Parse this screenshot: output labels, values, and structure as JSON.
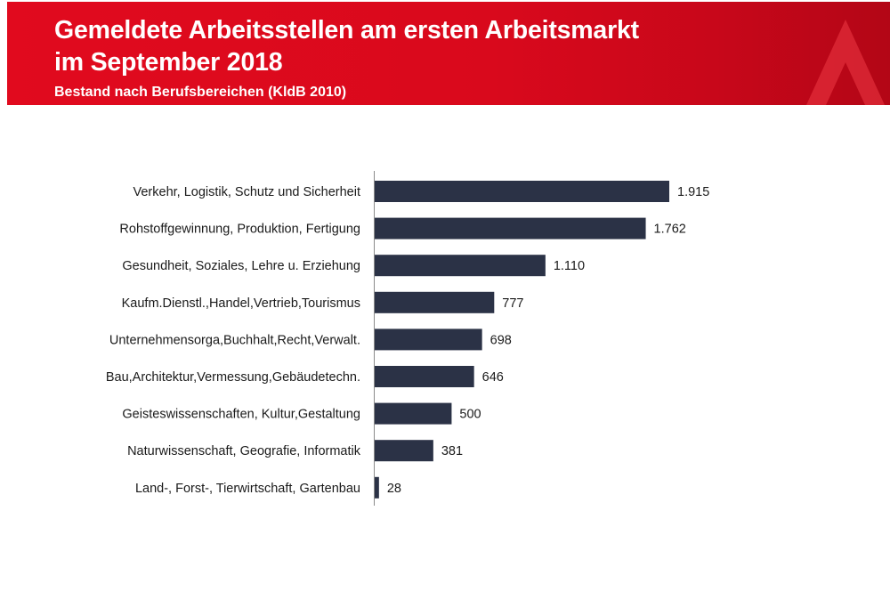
{
  "header": {
    "title_line1": "Gemeldete Arbeitsstellen am ersten Arbeitsmarkt",
    "title_line2": "im September 2018",
    "subtitle": "Bestand nach Berufsbereichen (KldB 2010)"
  },
  "colors": {
    "header_red": "#e10a1e",
    "bar": "#2b3246",
    "axis": "#8a8a8a"
  },
  "chart_data": {
    "type": "bar",
    "orientation": "horizontal",
    "categories": [
      "Verkehr, Logistik, Schutz und Sicherheit",
      "Rohstoffgewinnung, Produktion, Fertigung",
      "Gesundheit, Soziales, Lehre u. Erziehung",
      "Kaufm.Dienstl.,Handel,Vertrieb,Tourismus",
      "Unternehmensorga,Buchhalt,Recht,Verwalt.",
      "Bau,Architektur,Vermessung,Gebäudetechn.",
      "Geisteswissenschaften, Kultur,Gestaltung",
      "Naturwissenschaft, Geografie, Informatik",
      "Land-, Forst-, Tierwirtschaft, Gartenbau"
    ],
    "values": [
      1915,
      1762,
      1110,
      777,
      698,
      646,
      500,
      381,
      28
    ],
    "value_labels": [
      "1.915",
      "1.762",
      "1.110",
      "777",
      "698",
      "646",
      "500",
      "381",
      "28"
    ],
    "title": "",
    "xlabel": "",
    "ylabel": "",
    "xlim": [
      0,
      2000
    ],
    "grid": false,
    "legend": "none"
  }
}
